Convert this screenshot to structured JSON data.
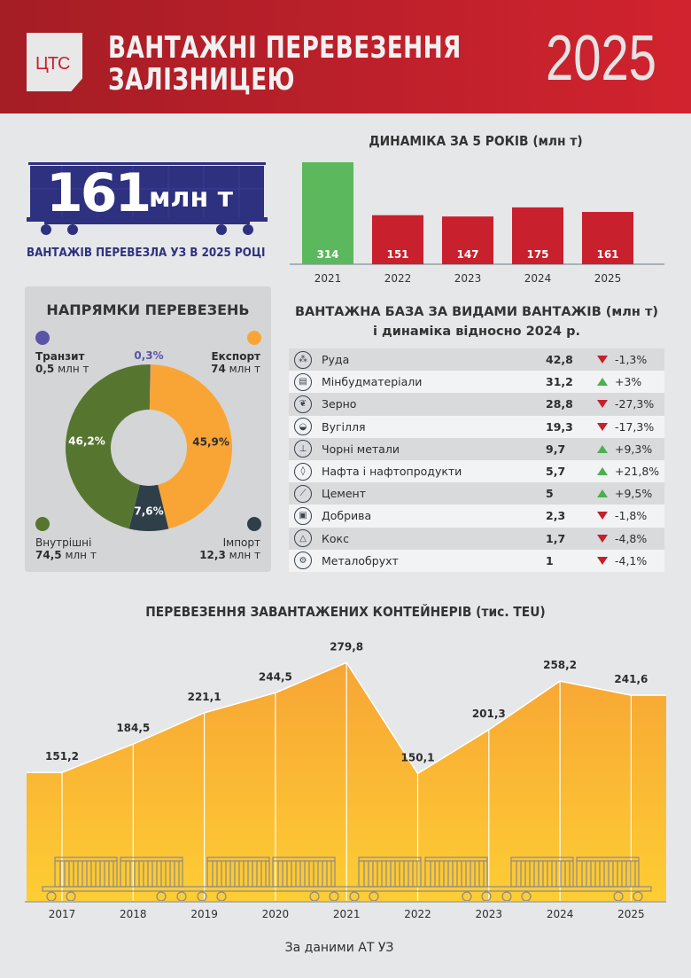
{
  "header": {
    "logo_text": "ЦТС",
    "title_line1": "ВАНТАЖНІ ПЕРЕВЕЗЕННЯ",
    "title_line2": "ЗАЛІЗНИЦЕЮ",
    "year": "2025"
  },
  "total": {
    "value": "161",
    "unit": "млн т",
    "caption": "ВАНТАЖІВ ПЕРЕВЕЗЛА УЗ В 2025 РОЦІ",
    "wagon_color": "#2e3080"
  },
  "chart_data": [
    {
      "type": "bar",
      "title": "ДИНАМІКА ЗА 5 РОКІВ (млн т)",
      "categories": [
        "2021",
        "2022",
        "2023",
        "2024",
        "2025"
      ],
      "values": [
        314,
        151,
        147,
        175,
        161
      ],
      "colors": [
        "#5cb85c",
        "#c8202c",
        "#c8202c",
        "#c8202c",
        "#c8202c"
      ],
      "ylim": [
        0,
        314
      ]
    },
    {
      "type": "pie",
      "title": "НАПРЯМКИ ПЕРЕВЕЗЕНЬ",
      "slices": [
        {
          "name": "Транзит",
          "value": 0.5,
          "unit": "млн т",
          "percent": "0,3%",
          "color": "#5b55a8"
        },
        {
          "name": "Експорт",
          "value": 74,
          "unit": "млн т",
          "percent": "45,9%",
          "color": "#f9a535"
        },
        {
          "name": "Імпорт",
          "value": 12.3,
          "unit": "млн т",
          "percent": "7,6%",
          "color": "#2f3f4a"
        },
        {
          "name": "Внутрішні",
          "value": 74.5,
          "unit": "млн т",
          "percent": "46,2%",
          "color": "#567630"
        }
      ],
      "value_labels": {
        "Транзит": "0,5",
        "Експорт": "74",
        "Імпорт": "12,3",
        "Внутрішні": "74,5"
      }
    },
    {
      "type": "table",
      "title_line1": "ВАНТАЖНА БАЗА ЗА ВИДАМИ ВАНТАЖІВ (млн т)",
      "title_line2": "і динаміка відносно 2024 р.",
      "rows": [
        {
          "icon": "ore-icon",
          "glyph": "⁂",
          "name": "Руда",
          "value": "42,8",
          "trend": "down",
          "change": "-1,3%"
        },
        {
          "icon": "bricks-icon",
          "glyph": "▤",
          "name": "Мінбудматеріали",
          "value": "31,2",
          "trend": "up",
          "change": "+3%"
        },
        {
          "icon": "grain-icon",
          "glyph": "❦",
          "name": "Зерно",
          "value": "28,8",
          "trend": "down",
          "change": "-27,3%"
        },
        {
          "icon": "coal-cart-icon",
          "glyph": "◒",
          "name": "Вугілля",
          "value": "19,3",
          "trend": "down",
          "change": "-17,3%"
        },
        {
          "icon": "anvil-icon",
          "glyph": "⊥",
          "name": "Чорні метали",
          "value": "9,7",
          "trend": "up",
          "change": "+9,3%"
        },
        {
          "icon": "oil-drop-icon",
          "glyph": "◊",
          "name": "Нафта і нафтопродукти",
          "value": "5,7",
          "trend": "up",
          "change": "+21,8%"
        },
        {
          "icon": "trowel-icon",
          "glyph": "⟋",
          "name": "Цемент",
          "value": "5",
          "trend": "up",
          "change": "+9,5%"
        },
        {
          "icon": "fertilizer-bag-icon",
          "glyph": "▣",
          "name": "Добрива",
          "value": "2,3",
          "trend": "down",
          "change": "-1,8%"
        },
        {
          "icon": "coke-pile-icon",
          "glyph": "△",
          "name": "Кокс",
          "value": "1,7",
          "trend": "down",
          "change": "-4,8%"
        },
        {
          "icon": "gear-icon",
          "glyph": "⚙",
          "name": "Металобрухт",
          "value": "1",
          "trend": "down",
          "change": "-4,1%"
        }
      ]
    },
    {
      "type": "area",
      "title": "ПЕРЕВЕЗЕННЯ ЗАВАНТАЖЕНИХ КОНТЕЙНЕРІВ (тис. TEU)",
      "categories": [
        "2017",
        "2018",
        "2019",
        "2020",
        "2021",
        "2022",
        "2023",
        "2024",
        "2025"
      ],
      "values": [
        151.2,
        184.5,
        221.1,
        244.5,
        279.8,
        150.1,
        201.3,
        258.2,
        241.6
      ],
      "labels": [
        "151,2",
        "184,5",
        "221,1",
        "244,5",
        "279,8",
        "150,1",
        "201,3",
        "258,2",
        "241,6"
      ],
      "colors": [
        "#f7a535",
        "#fecd33"
      ],
      "ylim": [
        0,
        279.8
      ]
    }
  ],
  "colors": {
    "up": "#4caf50",
    "down": "#c5202b"
  },
  "source": "За даними АТ УЗ"
}
